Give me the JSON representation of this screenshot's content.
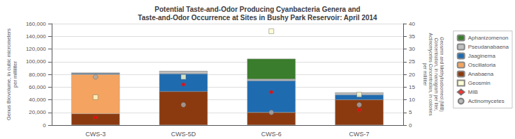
{
  "chart_data": {
    "type": "bar",
    "title": "Potential Taste-and-Odor Producing Cyanbacteria Genera and\nTaste-and-Odor Occurrence at Sites in Bushy Park Reservoir: April 2014",
    "categories": [
      "CWS-3",
      "CWS-5D",
      "CWS-6",
      "CWS-7"
    ],
    "stacked": true,
    "grid": true,
    "legend": "right",
    "ylabel": "Genus Biovolume, in cubic micrometers\nper milliliter",
    "y2label": "Geosmin and Methylisoborneol (MIB)\nConcentration, in nanogram per liter,\nActinomycetes Concentration, in colonies\nper milliliter",
    "ylim": [
      0,
      160000
    ],
    "yticks": [
      0,
      {
        "value": 20000,
        "label": "20,000"
      },
      {
        "value": 40000,
        "label": "40,000"
      },
      {
        "value": 60000,
        "label": "60,000"
      },
      {
        "value": 80000,
        "label": "80,000"
      },
      {
        "value": 100000,
        "label": "100,000"
      },
      {
        "value": 120000,
        "label": "120,000"
      },
      {
        "value": 140000,
        "label": "140,000"
      },
      {
        "value": 160000,
        "label": "160,000"
      }
    ],
    "y2lim": [
      0,
      40
    ],
    "y2ticks": [
      0,
      5,
      10,
      15,
      20,
      25,
      30,
      35,
      40
    ],
    "series": [
      {
        "name": "Anabaena",
        "color": "#8B3A0F",
        "values": [
          18000,
          53000,
          20000,
          40000
        ]
      },
      {
        "name": "Oscillatoria",
        "color": "#F4A460",
        "values": [
          62000,
          0,
          0,
          0
        ]
      },
      {
        "name": "Jaaginema",
        "color": "#1F6BB0",
        "values": [
          2000,
          28000,
          50000,
          8000
        ]
      },
      {
        "name": "Pseudanabaena",
        "color": "#C0C0C0",
        "values": [
          0,
          4000,
          2500,
          3000
        ]
      },
      {
        "name": "Aphanizomenon",
        "color": "#3A7D2C",
        "values": [
          0,
          0,
          32000,
          0
        ]
      },
      {
        "name": "Geosmin",
        "type": "scatter",
        "axis": "y2",
        "marker": "square",
        "color": "#FFFFCC",
        "values": [
          11,
          19,
          37,
          12
        ]
      },
      {
        "name": "MIB",
        "type": "scatter",
        "axis": "y2",
        "marker": "diamond",
        "color": "red",
        "values": [
          3,
          16,
          13,
          6
        ]
      },
      {
        "name": "Actinomycetes",
        "type": "scatter",
        "axis": "y2",
        "marker": "circle",
        "color": "#A9A9A9",
        "values": [
          19,
          8,
          5,
          8
        ]
      }
    ]
  }
}
